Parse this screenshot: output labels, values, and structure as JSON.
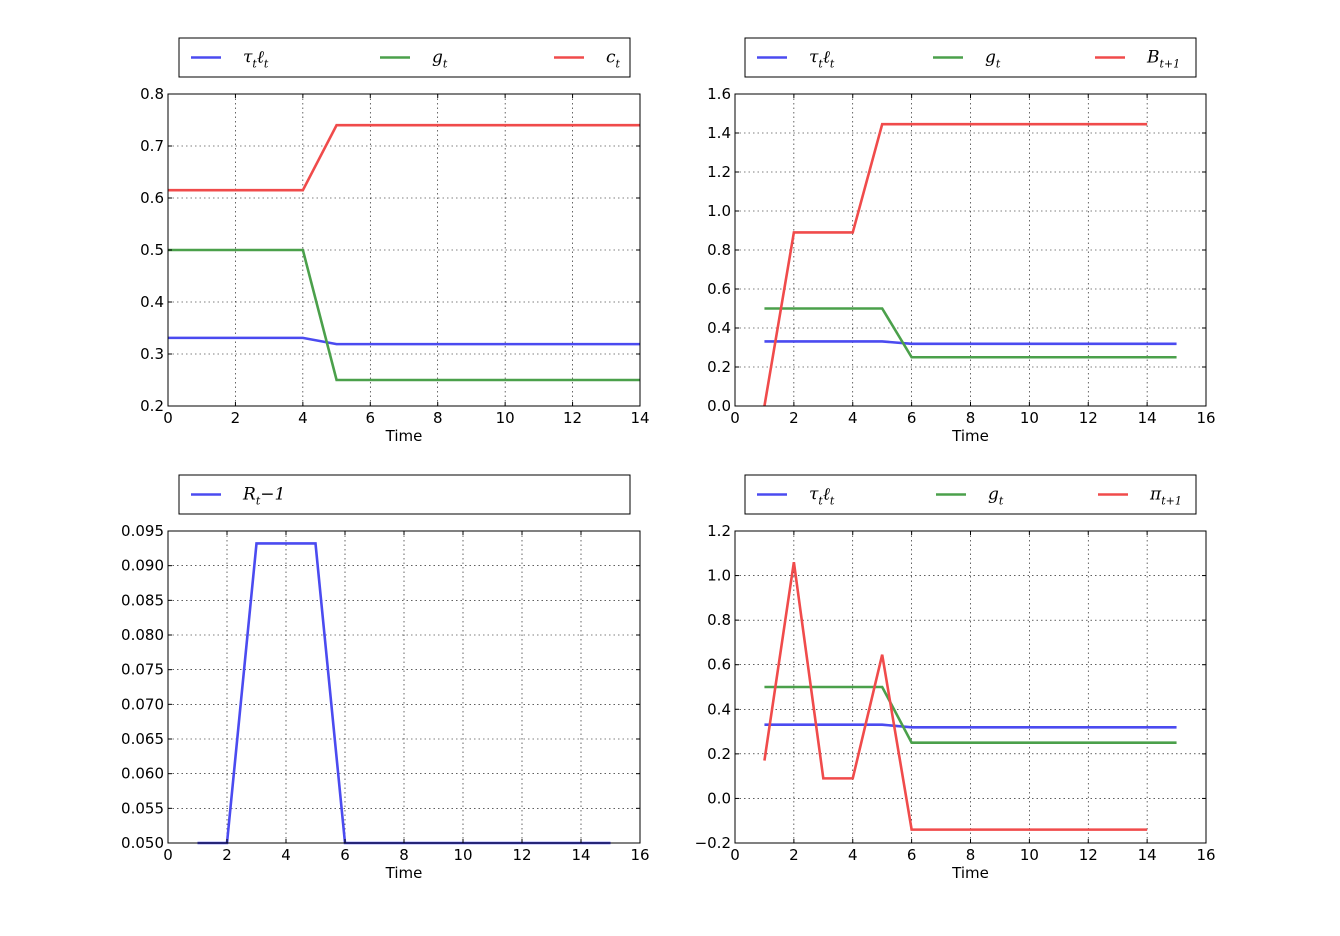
{
  "chart_data": [
    {
      "type": "line",
      "xlabel": "Time",
      "xlim": [
        0,
        14
      ],
      "ylim": [
        0.2,
        0.8
      ],
      "xticks": [
        "0",
        "2",
        "4",
        "6",
        "8",
        "10",
        "12",
        "14"
      ],
      "yticks": [
        "0.2",
        "0.3",
        "0.4",
        "0.5",
        "0.6",
        "0.7",
        "0.8"
      ],
      "grid": true,
      "legend": "top",
      "series": [
        {
          "name": "τtℓt",
          "color": "#4b4bf0",
          "x": [
            0,
            1,
            2,
            3,
            4,
            5,
            6,
            7,
            8,
            9,
            10,
            11,
            12,
            13,
            14
          ],
          "y": [
            0.331,
            0.331,
            0.331,
            0.331,
            0.331,
            0.319,
            0.319,
            0.319,
            0.319,
            0.319,
            0.319,
            0.319,
            0.319,
            0.319,
            0.319
          ]
        },
        {
          "name": "gt",
          "color": "#4ba04b",
          "x": [
            0,
            1,
            2,
            3,
            4,
            5,
            6,
            7,
            8,
            9,
            10,
            11,
            12,
            13,
            14
          ],
          "y": [
            0.5,
            0.5,
            0.5,
            0.5,
            0.5,
            0.25,
            0.25,
            0.25,
            0.25,
            0.25,
            0.25,
            0.25,
            0.25,
            0.25,
            0.25
          ]
        },
        {
          "name": "ct",
          "color": "#f04b4b",
          "x": [
            0,
            1,
            2,
            3,
            4,
            5,
            6,
            7,
            8,
            9,
            10,
            11,
            12,
            13,
            14
          ],
          "y": [
            0.615,
            0.615,
            0.615,
            0.615,
            0.615,
            0.74,
            0.74,
            0.74,
            0.74,
            0.74,
            0.74,
            0.74,
            0.74,
            0.74,
            0.74
          ]
        }
      ]
    },
    {
      "type": "line",
      "xlabel": "Time",
      "xlim": [
        0,
        16
      ],
      "ylim": [
        0.0,
        1.6
      ],
      "xticks": [
        "0",
        "2",
        "4",
        "6",
        "8",
        "10",
        "12",
        "14",
        "16"
      ],
      "yticks": [
        "0.0",
        "0.2",
        "0.4",
        "0.6",
        "0.8",
        "1.0",
        "1.2",
        "1.4",
        "1.6"
      ],
      "grid": true,
      "legend": "top",
      "series": [
        {
          "name": "τtℓt",
          "color": "#4b4bf0",
          "x": [
            1,
            2,
            3,
            4,
            5,
            6,
            7,
            8,
            9,
            10,
            11,
            12,
            13,
            14,
            15
          ],
          "y": [
            0.331,
            0.331,
            0.331,
            0.331,
            0.331,
            0.319,
            0.319,
            0.319,
            0.319,
            0.319,
            0.319,
            0.319,
            0.319,
            0.319,
            0.319
          ]
        },
        {
          "name": "gt",
          "color": "#4ba04b",
          "x": [
            1,
            2,
            3,
            4,
            5,
            6,
            7,
            8,
            9,
            10,
            11,
            12,
            13,
            14,
            15
          ],
          "y": [
            0.5,
            0.5,
            0.5,
            0.5,
            0.5,
            0.25,
            0.25,
            0.25,
            0.25,
            0.25,
            0.25,
            0.25,
            0.25,
            0.25,
            0.25
          ]
        },
        {
          "name": "Bt+1",
          "color": "#f04b4b",
          "x": [
            1,
            2,
            3,
            4,
            5,
            6,
            7,
            8,
            9,
            10,
            11,
            12,
            13,
            14
          ],
          "y": [
            0.0,
            0.89,
            0.89,
            0.89,
            1.445,
            1.445,
            1.445,
            1.445,
            1.445,
            1.445,
            1.445,
            1.445,
            1.445,
            1.445
          ]
        }
      ]
    },
    {
      "type": "line",
      "xlabel": "Time",
      "xlim": [
        0,
        16
      ],
      "ylim": [
        0.05,
        0.095
      ],
      "xticks": [
        "0",
        "2",
        "4",
        "6",
        "8",
        "10",
        "12",
        "14",
        "16"
      ],
      "yticks": [
        "0.050",
        "0.055",
        "0.060",
        "0.065",
        "0.070",
        "0.075",
        "0.080",
        "0.085",
        "0.090",
        "0.095"
      ],
      "grid": true,
      "legend": "top",
      "series": [
        {
          "name": "Rt−1",
          "color": "#4b4bf0",
          "x": [
            1,
            2,
            3,
            4,
            5,
            6,
            7,
            8,
            9,
            10,
            11,
            12,
            13,
            14,
            15
          ],
          "y": [
            0.05,
            0.05,
            0.0932,
            0.0932,
            0.0932,
            0.05,
            0.05,
            0.05,
            0.05,
            0.05,
            0.05,
            0.05,
            0.05,
            0.05,
            0.05
          ]
        }
      ]
    },
    {
      "type": "line",
      "xlabel": "Time",
      "xlim": [
        0,
        16
      ],
      "ylim": [
        -0.2,
        1.2
      ],
      "xticks": [
        "0",
        "2",
        "4",
        "6",
        "8",
        "10",
        "12",
        "14",
        "16"
      ],
      "yticks": [
        "−0.2",
        "0.0",
        "0.2",
        "0.4",
        "0.6",
        "0.8",
        "1.0",
        "1.2"
      ],
      "grid": true,
      "legend": "top",
      "series": [
        {
          "name": "τtℓt",
          "color": "#4b4bf0",
          "x": [
            1,
            2,
            3,
            4,
            5,
            6,
            7,
            8,
            9,
            10,
            11,
            12,
            13,
            14,
            15
          ],
          "y": [
            0.331,
            0.331,
            0.331,
            0.331,
            0.331,
            0.319,
            0.319,
            0.319,
            0.319,
            0.319,
            0.319,
            0.319,
            0.319,
            0.319,
            0.319
          ]
        },
        {
          "name": "gt",
          "color": "#4ba04b",
          "x": [
            1,
            2,
            3,
            4,
            5,
            6,
            7,
            8,
            9,
            10,
            11,
            12,
            13,
            14,
            15
          ],
          "y": [
            0.5,
            0.5,
            0.5,
            0.5,
            0.5,
            0.25,
            0.25,
            0.25,
            0.25,
            0.25,
            0.25,
            0.25,
            0.25,
            0.25,
            0.25
          ]
        },
        {
          "name": "πt+1",
          "color": "#f04b4b",
          "x": [
            1,
            2,
            3,
            4,
            5,
            6,
            7,
            8,
            9,
            10,
            11,
            12,
            13,
            14
          ],
          "y": [
            0.17,
            1.06,
            0.09,
            0.09,
            0.645,
            -0.14,
            -0.14,
            -0.14,
            -0.14,
            -0.14,
            -0.14,
            -0.14,
            -0.14,
            -0.14
          ]
        }
      ]
    }
  ]
}
